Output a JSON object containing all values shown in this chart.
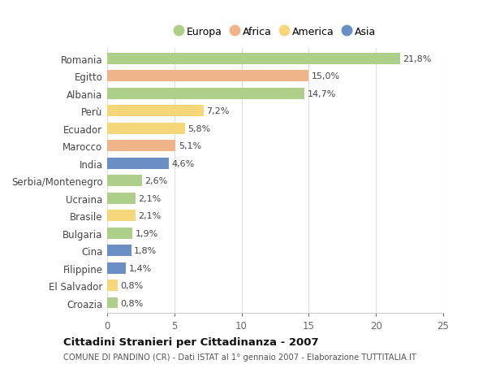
{
  "categories": [
    "Romania",
    "Egitto",
    "Albania",
    "Perù",
    "Ecuador",
    "Marocco",
    "India",
    "Serbia/Montenegro",
    "Ucraina",
    "Brasile",
    "Bulgaria",
    "Cina",
    "Filippine",
    "El Salvador",
    "Croazia"
  ],
  "values": [
    21.8,
    15.0,
    14.7,
    7.2,
    5.8,
    5.1,
    4.6,
    2.6,
    2.1,
    2.1,
    1.9,
    1.8,
    1.4,
    0.8,
    0.8
  ],
  "labels": [
    "21,8%",
    "15,0%",
    "14,7%",
    "7,2%",
    "5,8%",
    "5,1%",
    "4,6%",
    "2,6%",
    "2,1%",
    "2,1%",
    "1,9%",
    "1,8%",
    "1,4%",
    "0,8%",
    "0,8%"
  ],
  "continents": [
    "Europa",
    "Africa",
    "Europa",
    "America",
    "America",
    "Africa",
    "Asia",
    "Europa",
    "Europa",
    "America",
    "Europa",
    "Asia",
    "Asia",
    "America",
    "Europa"
  ],
  "colors": {
    "Europa": "#aecf8a",
    "Africa": "#f0b48a",
    "America": "#f5d77a",
    "Asia": "#6b8ec4"
  },
  "legend_order": [
    "Europa",
    "Africa",
    "America",
    "Asia"
  ],
  "title": "Cittadini Stranieri per Cittadinanza - 2007",
  "subtitle": "COMUNE DI PANDINO (CR) - Dati ISTAT al 1° gennaio 2007 - Elaborazione TUTTITALIA.IT",
  "xlim": [
    0,
    25
  ],
  "xticks": [
    0,
    5,
    10,
    15,
    20,
    25
  ],
  "background_color": "#ffffff",
  "grid_color": "#dddddd"
}
